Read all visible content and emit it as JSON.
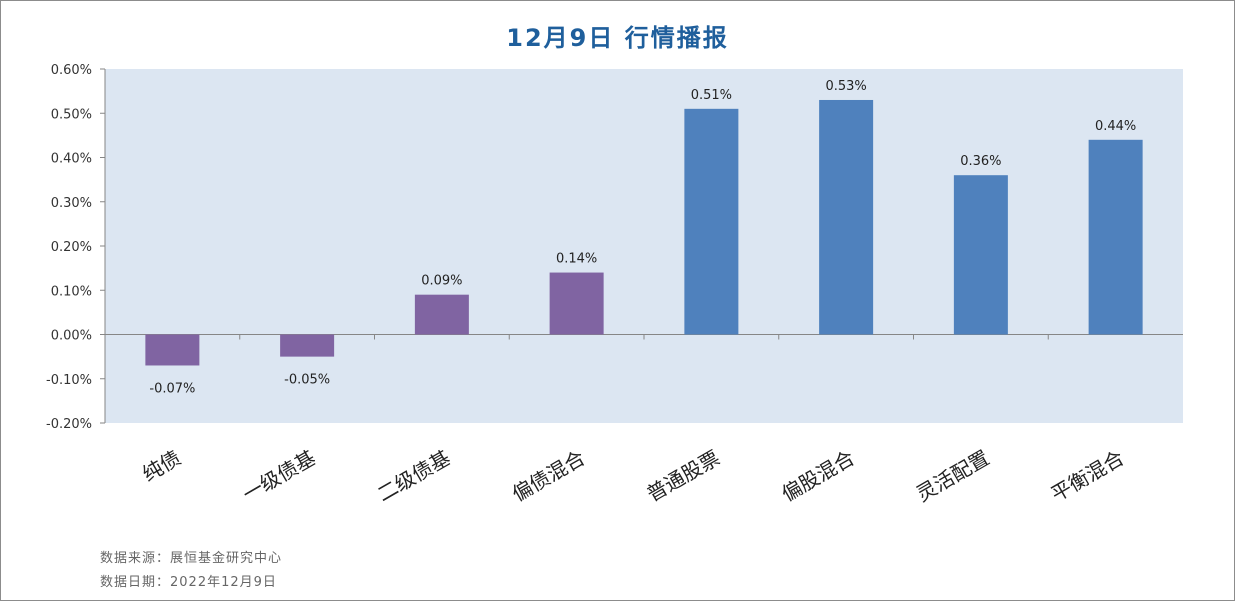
{
  "chart_data": {
    "type": "bar",
    "title": "12月9日 行情播报",
    "categories": [
      "纯债",
      "一级债基",
      "二级债基",
      "偏债混合",
      "普通股票",
      "偏股混合",
      "灵活配置",
      "平衡混合"
    ],
    "values": [
      -0.07,
      -0.05,
      0.09,
      0.14,
      0.51,
      0.53,
      0.36,
      0.44
    ],
    "value_labels": [
      "-0.07%",
      "-0.05%",
      "0.09%",
      "0.14%",
      "0.51%",
      "0.53%",
      "0.36%",
      "0.44%"
    ],
    "ylim": [
      -0.2,
      0.6
    ],
    "yticks": [
      0.6,
      0.5,
      0.4,
      0.3,
      0.2,
      0.1,
      0.0,
      -0.1,
      -0.2
    ],
    "ytick_labels": [
      "0.60%",
      "0.50%",
      "0.40%",
      "0.30%",
      "0.20%",
      "0.10%",
      "0.00%",
      "-0.10%",
      "-0.20%"
    ],
    "grid": false,
    "legend": "none",
    "colors": {
      "bond_like": "#8064a2",
      "equity_like": "#4f81bd",
      "plot_bg": "#dce6f2",
      "title": "#1f5f9c"
    },
    "bar_colors": [
      "#8064a2",
      "#8064a2",
      "#8064a2",
      "#8064a2",
      "#4f81bd",
      "#4f81bd",
      "#4f81bd",
      "#4f81bd"
    ]
  },
  "footer": {
    "source": "数据来源：展恒基金研究中心",
    "date": "数据日期：2022年12月9日"
  }
}
